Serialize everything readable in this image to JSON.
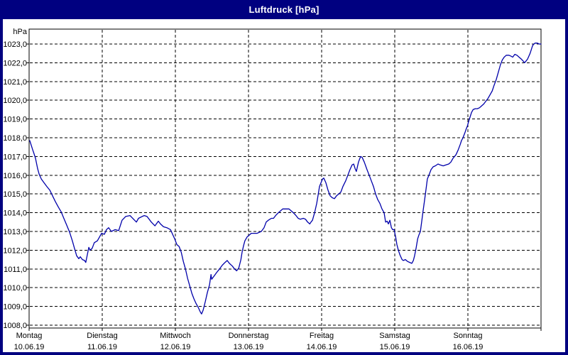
{
  "window": {
    "title": "Luftdruck [hPa]"
  },
  "colors": {
    "frame": "#000080",
    "titlebar_bg": "#000080",
    "titlebar_text": "#ffffff",
    "plot_bg": "#ffffff",
    "grid": "#000000",
    "line": "#0000aa"
  },
  "chart_data": {
    "type": "line",
    "title": "Luftdruck [hPa]",
    "y_unit": "hPa",
    "ylim": [
      1008,
      1023
    ],
    "ytick_step": 1,
    "ytick_labels": [
      "1008,0",
      "1009,0",
      "1010,0",
      "1011,0",
      "1012,0",
      "1013,0",
      "1014,0",
      "1015,0",
      "1016,0",
      "1017,0",
      "1018,0",
      "1019,0",
      "1020,0",
      "1021,0",
      "1022,0",
      "1023,0"
    ],
    "x_days": [
      {
        "name": "Montag",
        "date": "10.06.19"
      },
      {
        "name": "Dienstag",
        "date": "11.06.19"
      },
      {
        "name": "Mittwoch",
        "date": "12.06.19"
      },
      {
        "name": "Donnerstag",
        "date": "13.06.19"
      },
      {
        "name": "Freitag",
        "date": "14.06.19"
      },
      {
        "name": "Samstag",
        "date": "15.06.19"
      },
      {
        "name": "Sonntag",
        "date": "16.06.19"
      }
    ],
    "x_total_hours": 168,
    "grid": "dashed",
    "legend": "none",
    "line_color": "#0000aa",
    "series": [
      {
        "name": "Luftdruck",
        "points": [
          [
            0.2,
            1017.85
          ],
          [
            0.7,
            1017.6
          ],
          [
            1.2,
            1017.35
          ],
          [
            1.6,
            1017.15
          ],
          [
            2.1,
            1016.9
          ],
          [
            2.8,
            1016.35
          ],
          [
            3.3,
            1016.05
          ],
          [
            4.0,
            1015.8
          ],
          [
            4.9,
            1015.6
          ],
          [
            5.8,
            1015.4
          ],
          [
            6.8,
            1015.2
          ],
          [
            7.7,
            1014.9
          ],
          [
            8.6,
            1014.6
          ],
          [
            9.6,
            1014.3
          ],
          [
            10.5,
            1014.05
          ],
          [
            11.4,
            1013.7
          ],
          [
            12.3,
            1013.35
          ],
          [
            13.3,
            1012.95
          ],
          [
            14.2,
            1012.5
          ],
          [
            14.9,
            1012.1
          ],
          [
            15.6,
            1011.7
          ],
          [
            16.3,
            1011.55
          ],
          [
            16.8,
            1011.65
          ],
          [
            17.5,
            1011.5
          ],
          [
            18.2,
            1011.45
          ],
          [
            18.6,
            1011.35
          ],
          [
            19.6,
            1012.15
          ],
          [
            20.0,
            1012.0
          ],
          [
            20.7,
            1012.1
          ],
          [
            21.4,
            1012.4
          ],
          [
            22.4,
            1012.5
          ],
          [
            23.1,
            1012.7
          ],
          [
            23.8,
            1012.9
          ],
          [
            24.7,
            1012.85
          ],
          [
            25.4,
            1013.1
          ],
          [
            26.1,
            1013.2
          ],
          [
            27.0,
            1013.0
          ],
          [
            28.2,
            1013.1
          ],
          [
            29.4,
            1013.05
          ],
          [
            30.5,
            1013.6
          ],
          [
            31.7,
            1013.8
          ],
          [
            33.1,
            1013.85
          ],
          [
            34.3,
            1013.65
          ],
          [
            35.2,
            1013.5
          ],
          [
            35.9,
            1013.7
          ],
          [
            37.1,
            1013.8
          ],
          [
            37.8,
            1013.85
          ],
          [
            38.7,
            1013.8
          ],
          [
            40.1,
            1013.5
          ],
          [
            41.3,
            1013.3
          ],
          [
            42.4,
            1013.55
          ],
          [
            43.1,
            1013.4
          ],
          [
            44.1,
            1013.25
          ],
          [
            45.2,
            1013.2
          ],
          [
            46.4,
            1013.1
          ],
          [
            47.1,
            1012.85
          ],
          [
            47.8,
            1012.6
          ],
          [
            48.5,
            1012.3
          ],
          [
            49.2,
            1012.2
          ],
          [
            49.9,
            1011.9
          ],
          [
            50.6,
            1011.4
          ],
          [
            51.3,
            1011.0
          ],
          [
            52.0,
            1010.5
          ],
          [
            52.7,
            1010.1
          ],
          [
            53.4,
            1009.7
          ],
          [
            54.1,
            1009.4
          ],
          [
            54.8,
            1009.15
          ],
          [
            55.5,
            1008.95
          ],
          [
            56.2,
            1008.7
          ],
          [
            56.6,
            1008.6
          ],
          [
            57.1,
            1008.8
          ],
          [
            57.8,
            1009.25
          ],
          [
            58.5,
            1009.75
          ],
          [
            59.2,
            1010.15
          ],
          [
            59.7,
            1010.7
          ],
          [
            59.9,
            1010.45
          ],
          [
            60.6,
            1010.6
          ],
          [
            61.5,
            1010.8
          ],
          [
            62.5,
            1011.0
          ],
          [
            63.4,
            1011.2
          ],
          [
            64.3,
            1011.35
          ],
          [
            65.0,
            1011.45
          ],
          [
            65.7,
            1011.3
          ],
          [
            66.7,
            1011.15
          ],
          [
            67.4,
            1011.0
          ],
          [
            68.1,
            1010.9
          ],
          [
            68.8,
            1011.05
          ],
          [
            69.5,
            1011.5
          ],
          [
            69.9,
            1011.9
          ],
          [
            70.4,
            1012.25
          ],
          [
            70.8,
            1012.5
          ],
          [
            71.5,
            1012.7
          ],
          [
            72.2,
            1012.8
          ],
          [
            72.9,
            1012.9
          ],
          [
            73.9,
            1012.9
          ],
          [
            74.8,
            1012.9
          ],
          [
            75.5,
            1012.95
          ],
          [
            76.2,
            1013.0
          ],
          [
            77.1,
            1013.2
          ],
          [
            77.8,
            1013.5
          ],
          [
            78.5,
            1013.6
          ],
          [
            79.5,
            1013.7
          ],
          [
            80.2,
            1013.7
          ],
          [
            80.9,
            1013.85
          ],
          [
            81.8,
            1014.0
          ],
          [
            82.5,
            1014.1
          ],
          [
            83.2,
            1014.2
          ],
          [
            84.1,
            1014.2
          ],
          [
            85.3,
            1014.2
          ],
          [
            86.0,
            1014.1
          ],
          [
            86.7,
            1014.0
          ],
          [
            87.6,
            1013.85
          ],
          [
            88.3,
            1013.7
          ],
          [
            89.0,
            1013.65
          ],
          [
            90.0,
            1013.7
          ],
          [
            90.7,
            1013.65
          ],
          [
            91.4,
            1013.5
          ],
          [
            92.1,
            1013.4
          ],
          [
            92.5,
            1013.5
          ],
          [
            93.0,
            1013.6
          ],
          [
            93.7,
            1014.0
          ],
          [
            94.4,
            1014.5
          ],
          [
            94.9,
            1015.0
          ],
          [
            95.3,
            1015.4
          ],
          [
            95.8,
            1015.6
          ],
          [
            96.3,
            1015.8
          ],
          [
            96.7,
            1015.85
          ],
          [
            97.4,
            1015.6
          ],
          [
            98.1,
            1015.2
          ],
          [
            98.8,
            1014.9
          ],
          [
            99.5,
            1014.8
          ],
          [
            100.2,
            1014.75
          ],
          [
            100.9,
            1014.9
          ],
          [
            101.6,
            1015.0
          ],
          [
            102.3,
            1015.1
          ],
          [
            103.0,
            1015.4
          ],
          [
            103.9,
            1015.7
          ],
          [
            104.6,
            1016.0
          ],
          [
            105.3,
            1016.3
          ],
          [
            106.0,
            1016.55
          ],
          [
            106.5,
            1016.6
          ],
          [
            107.0,
            1016.35
          ],
          [
            107.4,
            1016.2
          ],
          [
            108.1,
            1016.7
          ],
          [
            108.8,
            1017.0
          ],
          [
            109.3,
            1016.95
          ],
          [
            110.0,
            1016.7
          ],
          [
            110.9,
            1016.3
          ],
          [
            111.6,
            1016.0
          ],
          [
            112.3,
            1015.7
          ],
          [
            113.0,
            1015.4
          ],
          [
            113.7,
            1015.0
          ],
          [
            114.4,
            1014.7
          ],
          [
            115.1,
            1014.5
          ],
          [
            115.8,
            1014.2
          ],
          [
            116.5,
            1014.0
          ],
          [
            117.0,
            1013.5
          ],
          [
            117.5,
            1013.55
          ],
          [
            117.9,
            1013.4
          ],
          [
            118.4,
            1013.6
          ],
          [
            118.9,
            1013.2
          ],
          [
            119.3,
            1013.1
          ],
          [
            119.8,
            1013.1
          ],
          [
            120.3,
            1012.7
          ],
          [
            120.7,
            1012.3
          ],
          [
            121.2,
            1012.0
          ],
          [
            121.7,
            1011.75
          ],
          [
            122.4,
            1011.5
          ],
          [
            122.8,
            1011.45
          ],
          [
            123.5,
            1011.5
          ],
          [
            124.2,
            1011.4
          ],
          [
            124.9,
            1011.35
          ],
          [
            125.6,
            1011.3
          ],
          [
            126.1,
            1011.45
          ],
          [
            126.5,
            1011.7
          ],
          [
            127.0,
            1012.1
          ],
          [
            127.5,
            1012.6
          ],
          [
            127.9,
            1012.8
          ],
          [
            128.4,
            1013.0
          ],
          [
            128.9,
            1013.6
          ],
          [
            129.3,
            1014.1
          ],
          [
            129.8,
            1014.7
          ],
          [
            130.3,
            1015.3
          ],
          [
            130.7,
            1015.8
          ],
          [
            131.2,
            1016.0
          ],
          [
            131.9,
            1016.3
          ],
          [
            132.6,
            1016.45
          ],
          [
            133.3,
            1016.5
          ],
          [
            134.2,
            1016.6
          ],
          [
            134.9,
            1016.55
          ],
          [
            135.9,
            1016.5
          ],
          [
            136.8,
            1016.55
          ],
          [
            137.7,
            1016.6
          ],
          [
            138.4,
            1016.7
          ],
          [
            139.1,
            1016.9
          ],
          [
            140.1,
            1017.1
          ],
          [
            140.8,
            1017.35
          ],
          [
            141.5,
            1017.65
          ],
          [
            141.9,
            1017.85
          ],
          [
            142.4,
            1018.0
          ],
          [
            143.1,
            1018.3
          ],
          [
            143.5,
            1018.5
          ],
          [
            143.8,
            1018.6
          ],
          [
            144.3,
            1018.9
          ],
          [
            144.7,
            1019.1
          ],
          [
            145.2,
            1019.35
          ],
          [
            145.7,
            1019.5
          ],
          [
            146.4,
            1019.55
          ],
          [
            147.1,
            1019.55
          ],
          [
            147.8,
            1019.6
          ],
          [
            148.5,
            1019.7
          ],
          [
            149.2,
            1019.8
          ],
          [
            149.9,
            1019.95
          ],
          [
            150.6,
            1020.1
          ],
          [
            151.3,
            1020.3
          ],
          [
            152.0,
            1020.5
          ],
          [
            152.6,
            1020.8
          ],
          [
            153.3,
            1021.1
          ],
          [
            154.0,
            1021.5
          ],
          [
            154.7,
            1021.9
          ],
          [
            155.3,
            1022.15
          ],
          [
            155.9,
            1022.3
          ],
          [
            156.6,
            1022.4
          ],
          [
            157.5,
            1022.4
          ],
          [
            158.2,
            1022.35
          ],
          [
            158.7,
            1022.3
          ],
          [
            159.4,
            1022.45
          ],
          [
            160.1,
            1022.4
          ],
          [
            160.8,
            1022.3
          ],
          [
            161.5,
            1022.2
          ],
          [
            162.1,
            1022.1
          ],
          [
            162.6,
            1022.0
          ],
          [
            163.1,
            1022.1
          ],
          [
            163.6,
            1022.2
          ],
          [
            164.0,
            1022.35
          ],
          [
            164.4,
            1022.5
          ],
          [
            164.8,
            1022.7
          ],
          [
            165.2,
            1022.9
          ],
          [
            165.6,
            1023.0
          ],
          [
            166.1,
            1023.05
          ],
          [
            166.8,
            1023.05
          ],
          [
            167.4,
            1023.0
          ],
          [
            168.0,
            1023.0
          ]
        ]
      }
    ]
  }
}
